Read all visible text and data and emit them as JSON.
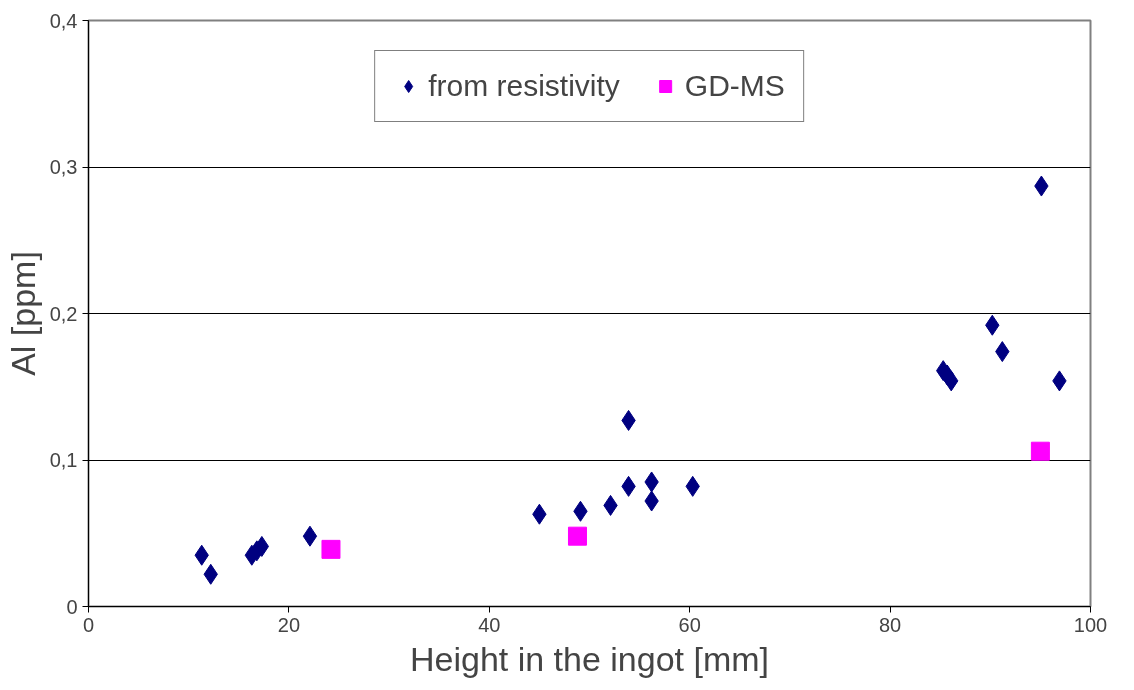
{
  "chart_data": {
    "type": "scatter",
    "xlabel": "Height in the ingot [mm]",
    "ylabel": "Al [ppm]",
    "xlim": [
      0,
      100
    ],
    "xticks": [
      0,
      20,
      40,
      60,
      80,
      100
    ],
    "ylim": [
      0,
      0.4
    ],
    "yticks": [
      0,
      {
        "value": 0.1,
        "label": "0,1"
      },
      {
        "value": 0.2,
        "label": "0,2"
      },
      {
        "value": 0.3,
        "label": "0,3"
      },
      {
        "value": 0.4,
        "label": "0,4"
      }
    ],
    "grid": "y",
    "legend": "top",
    "series": [
      {
        "name": "from resistivity",
        "color": "#000080",
        "marker": "diamond",
        "x": [
          11.3,
          12.2,
          16.3,
          16.8,
          17.3,
          22.1,
          45.0,
          49.1,
          52.1,
          53.9,
          53.9,
          56.2,
          56.2,
          60.3,
          85.3,
          85.7,
          86.1,
          90.2,
          91.2,
          95.1,
          96.9
        ],
        "values": [
          0.035,
          0.022,
          0.035,
          0.038,
          0.041,
          0.048,
          0.063,
          0.065,
          0.069,
          0.127,
          0.082,
          0.085,
          0.072,
          0.082,
          0.161,
          0.158,
          0.154,
          0.192,
          0.174,
          0.287,
          0.154
        ]
      },
      {
        "name": "GD-MS",
        "color": "#ff00ff",
        "marker": "square",
        "x": [
          24.2,
          48.8,
          95.0
        ],
        "values": [
          0.039,
          0.048,
          0.106
        ]
      }
    ]
  }
}
